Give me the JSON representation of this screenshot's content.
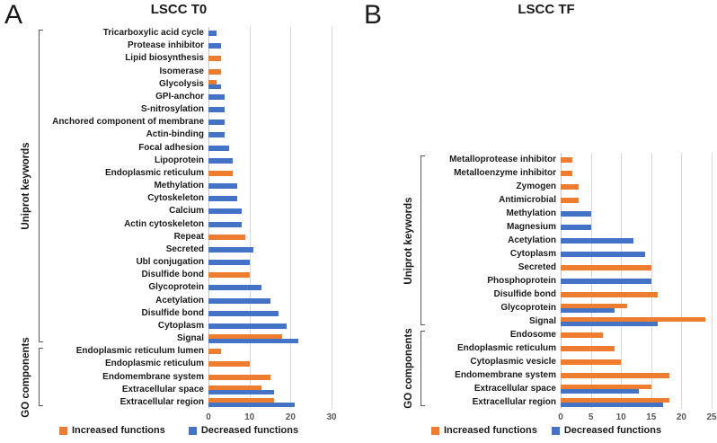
{
  "chart_data": [
    {
      "type": "bar",
      "orientation": "horizontal",
      "panel_letter": "A",
      "title": "LSCC T0",
      "xlabel": "",
      "ylabel": "",
      "xlim": [
        0,
        30
      ],
      "xticks": [
        0,
        10,
        20,
        30
      ],
      "grid": true,
      "legend_position": "bottom",
      "categories": [
        "Tricarboxylic acid cycle",
        "Protease inhibitor",
        "Lipid biosynthesis",
        "Isomerase",
        "Glycolysis",
        "GPI-anchor",
        "S-nitrosylation",
        "Anchored component of membrane",
        "Actin-binding",
        "Focal adhesion",
        "Lipoprotein",
        "Endoplasmic reticulum",
        "Methylation",
        "Cytoskeleton",
        "Calcium",
        "Actin cytoskeleton",
        "Repeat",
        "Secreted",
        "Ubl conjugation",
        "Disulfide bond",
        "Glycoprotein",
        "Acetylation",
        "Disulfide bond",
        "Cytoplasm",
        "Signal",
        "Endoplasmic reticulum lumen",
        "Endoplasmic reticulum",
        "Endomembrane system",
        "Extracellular space",
        "Extracellular region"
      ],
      "series": [
        {
          "name": "Increased functions",
          "color": "#ED7D31",
          "values": [
            0,
            0,
            3,
            3,
            2,
            0,
            0,
            0,
            0,
            0,
            0,
            6,
            0,
            0,
            0,
            0,
            9,
            0,
            0,
            10,
            0,
            0,
            0,
            0,
            18,
            3,
            10,
            15,
            13,
            16
          ]
        },
        {
          "name": "Decreased functions",
          "color": "#4472C4",
          "values": [
            2,
            3,
            0,
            0,
            3,
            4,
            4,
            4,
            4,
            5,
            6,
            0,
            7,
            7,
            8,
            8,
            0,
            11,
            10,
            0,
            13,
            15,
            17,
            19,
            22,
            0,
            0,
            0,
            16,
            21
          ]
        }
      ],
      "group_labels": [
        {
          "label": "Uniprot keywords",
          "from_index": 0,
          "to_index": 24
        },
        {
          "label": "GO components",
          "from_index": 25,
          "to_index": 29
        }
      ]
    },
    {
      "type": "bar",
      "orientation": "horizontal",
      "panel_letter": "B",
      "title": "LSCC TF",
      "xlabel": "",
      "ylabel": "",
      "xlim": [
        0,
        25
      ],
      "xticks": [
        0,
        5,
        10,
        15,
        20,
        25
      ],
      "grid": true,
      "legend_position": "bottom",
      "categories": [
        "Metalloprotease inhibitor",
        "Metalloenzyme inhibitor",
        "Zymogen",
        "Antimicrobial",
        "Methylation",
        "Magnesium",
        "Acetylation",
        "Cytoplasm",
        "Secreted",
        "Phosphoprotein",
        "Disulfide bond",
        "Glycoprotein",
        "Signal",
        "Endosome",
        "Endoplasmic reticulum",
        "Cytoplasmic vesicle",
        "Endomembrane system",
        "Extracellular space",
        "Extracellular region"
      ],
      "series": [
        {
          "name": "Increased functions",
          "color": "#ED7D31",
          "values": [
            2,
            2,
            3,
            3,
            0,
            0,
            0,
            0,
            15,
            0,
            16,
            11,
            24,
            7,
            9,
            10,
            18,
            15,
            18
          ]
        },
        {
          "name": "Decreased functions",
          "color": "#4472C4",
          "values": [
            0,
            0,
            0,
            0,
            5,
            5,
            12,
            14,
            0,
            15,
            0,
            9,
            16,
            0,
            0,
            0,
            0,
            13,
            17
          ]
        }
      ],
      "group_labels": [
        {
          "label": "Uniprot keywords",
          "from_index": 0,
          "to_index": 12
        },
        {
          "label": "GO components",
          "from_index": 13,
          "to_index": 18
        }
      ]
    }
  ],
  "colors": {
    "increased": "#ED7D31",
    "decreased": "#4472C4",
    "gridline": "#D9D9D9",
    "axis_text": "#595959",
    "bracket": "#595959"
  }
}
